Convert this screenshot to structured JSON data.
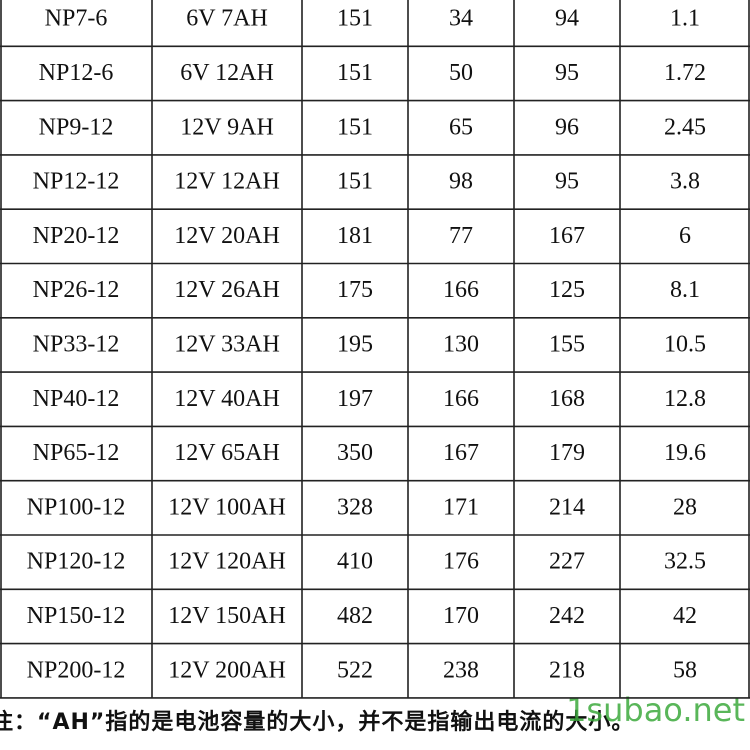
{
  "table": {
    "rows": [
      [
        "NP7-6",
        "6V 7AH",
        151,
        34,
        94,
        1.1
      ],
      [
        "NP12-6",
        "6V 12AH",
        151,
        50,
        95,
        1.72
      ],
      [
        "NP9-12",
        "12V 9AH",
        151,
        65,
        96,
        2.45
      ],
      [
        "NP12-12",
        "12V 12AH",
        151,
        98,
        95,
        3.8
      ],
      [
        "NP20-12",
        "12V 20AH",
        181,
        77,
        167,
        6
      ],
      [
        "NP26-12",
        "12V 26AH",
        175,
        166,
        125,
        8.1
      ],
      [
        "NP33-12",
        "12V 33AH",
        195,
        130,
        155,
        10.5
      ],
      [
        "NP40-12",
        "12V 40AH",
        197,
        166,
        168,
        12.8
      ],
      [
        "NP65-12",
        "12V 65AH",
        350,
        167,
        179,
        19.6
      ],
      [
        "NP100-12",
        "12V 100AH",
        328,
        171,
        214,
        28
      ],
      [
        "NP120-12",
        "12V 120AH",
        410,
        176,
        227,
        32.5
      ],
      [
        "NP150-12",
        "12V 150AH",
        482,
        170,
        242,
        42
      ],
      [
        "NP200-12",
        "12V 200AH",
        522,
        238,
        218,
        58
      ]
    ]
  },
  "footnote": "注：“AH”指的是电池容量的大小，并不是指输出电流的大小。",
  "watermark": "1subao.net"
}
